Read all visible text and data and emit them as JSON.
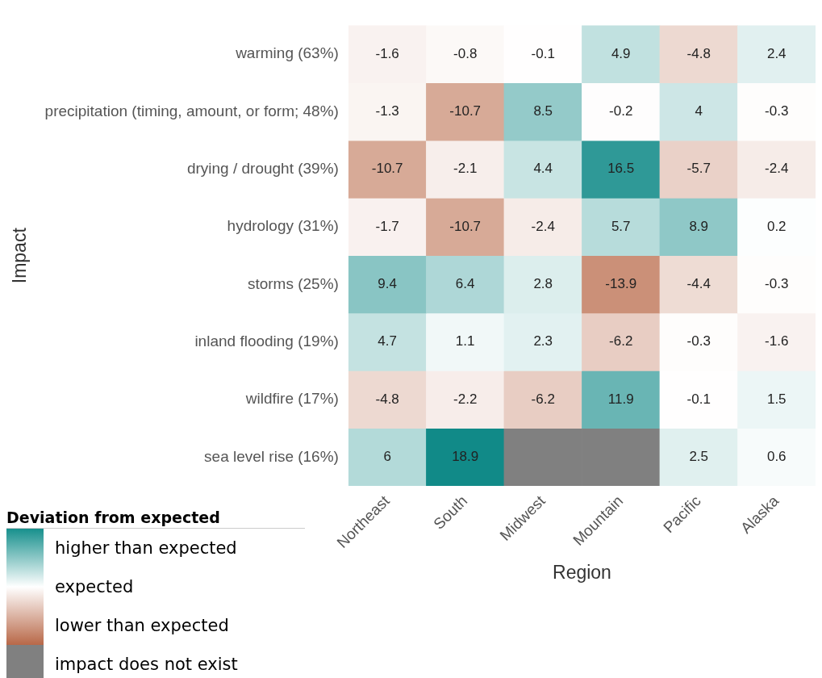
{
  "chart_data": {
    "type": "heatmap",
    "xlabel": "Region",
    "ylabel": "Impact",
    "legend_title": "Deviation from expected",
    "annotations": [
      "higher than expected",
      "expected",
      "lower than expected",
      "impact does not exist"
    ],
    "categories": [
      "Northeast",
      "South",
      "Midwest",
      "Mountain",
      "Pacific",
      "Alaska"
    ],
    "y_categories": [
      "warming (63%)",
      "precipitation (timing, amount, or form; 48%)",
      "drying / drought (39%)",
      "hydrology (31%)",
      "storms (25%)",
      "inland flooding (19%)",
      "wildfire (17%)",
      "sea level rise (16%)"
    ],
    "cells": [
      [
        -1.6,
        -0.8,
        -0.1,
        4.9,
        -4.8,
        2.4
      ],
      [
        -1.3,
        -10.7,
        8.5,
        -0.2,
        4,
        -0.3
      ],
      [
        -10.7,
        -2.1,
        4.4,
        16.5,
        -5.7,
        -2.4
      ],
      [
        -1.7,
        -10.7,
        -2.4,
        5.7,
        8.9,
        0.2
      ],
      [
        9.4,
        6.4,
        2.8,
        -13.9,
        -4.4,
        -0.3
      ],
      [
        4.7,
        1.1,
        2.3,
        -6.2,
        -0.3,
        -1.6
      ],
      [
        -4.8,
        -2.2,
        -6.2,
        11.9,
        -0.1,
        1.5
      ],
      [
        6,
        18.9,
        null,
        null,
        2.5,
        0.6
      ]
    ],
    "data_labels": true,
    "grid": false
  }
}
